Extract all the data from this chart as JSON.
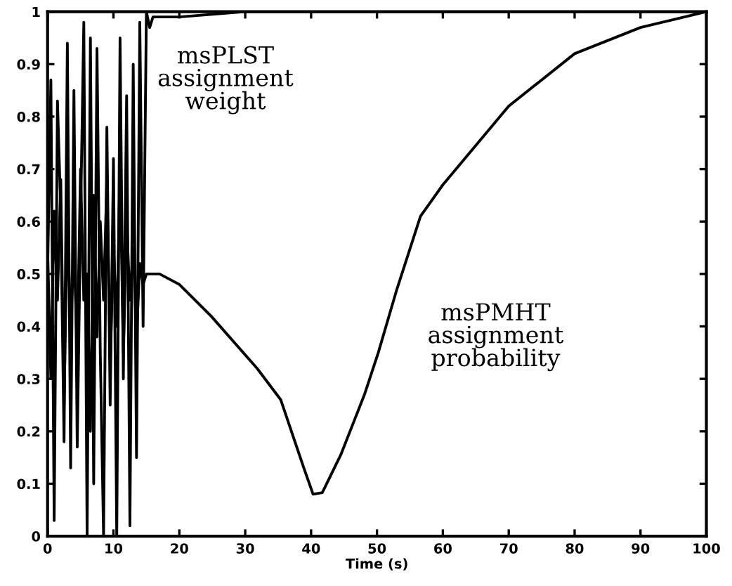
{
  "chart_data": {
    "type": "line",
    "xlabel": "Time (s)",
    "xlim": [
      0,
      100
    ],
    "ylim": [
      0,
      1
    ],
    "xticks": [
      0,
      10,
      20,
      30,
      40,
      50,
      60,
      70,
      80,
      90,
      100
    ],
    "yticks": [
      0,
      0.1,
      0.2,
      0.3,
      0.4,
      0.5,
      0.6,
      0.7,
      0.8,
      0.9,
      1
    ],
    "grid": false,
    "legend": false,
    "series": [
      {
        "color": "#000000",
        "x": [
          0,
          0.5,
          1,
          1.5,
          2,
          2.5,
          3,
          3.5,
          4,
          4.5,
          5,
          5.5,
          6,
          6.5,
          7,
          7.5,
          8,
          8.5,
          9,
          9.5,
          10,
          10.5,
          11,
          11.5,
          12,
          12.5,
          13,
          13.5,
          14,
          14.5,
          15,
          15.5,
          16,
          20,
          30,
          40,
          50,
          60,
          70,
          80,
          90,
          100
        ],
        "values": [
          0.5,
          0.87,
          0.03,
          0.83,
          0.62,
          0.18,
          0.94,
          0.13,
          0.85,
          0.17,
          0.6,
          0.98,
          0.0,
          0.95,
          0.1,
          0.93,
          0.35,
          0.0,
          0.78,
          0.25,
          0.72,
          0.0,
          0.95,
          0.3,
          0.84,
          0.02,
          0.9,
          0.15,
          0.98,
          0.4,
          1.0,
          0.97,
          0.99,
          0.99,
          1,
          1,
          1,
          1,
          1,
          1,
          1,
          1
        ]
      },
      {
        "color": "#000000",
        "x": [
          0,
          0.5,
          1,
          1.5,
          2,
          2.5,
          3,
          3.5,
          4,
          4.5,
          5,
          5.5,
          6,
          6.5,
          7,
          7.5,
          8,
          8.5,
          9,
          9.5,
          10,
          10.5,
          11,
          11.5,
          12,
          12.5,
          13,
          13.5,
          14,
          14.5,
          15,
          17,
          20,
          24.8,
          31.8,
          35.4,
          38.9,
          40.3,
          41.7,
          44.5,
          48.1,
          50.2,
          53,
          56.6,
          60,
          70,
          80,
          90,
          100
        ],
        "values": [
          0.55,
          0.3,
          0.62,
          0.45,
          0.68,
          0.25,
          0.6,
          0.4,
          0.55,
          0.35,
          0.7,
          0.45,
          0.5,
          0.2,
          0.65,
          0.38,
          0.6,
          0.45,
          0.68,
          0.33,
          0.55,
          0.4,
          0.7,
          0.35,
          0.6,
          0.45,
          0.55,
          0.38,
          0.52,
          0.48,
          0.5,
          0.5,
          0.48,
          0.42,
          0.32,
          0.26,
          0.13,
          0.08,
          0.083,
          0.155,
          0.27,
          0.35,
          0.47,
          0.61,
          0.67,
          0.82,
          0.92,
          0.97,
          1
        ]
      }
    ],
    "annotations": [
      "msPLST\nassignment\nweight",
      "msPMHT\nassignment\nprobability"
    ]
  }
}
